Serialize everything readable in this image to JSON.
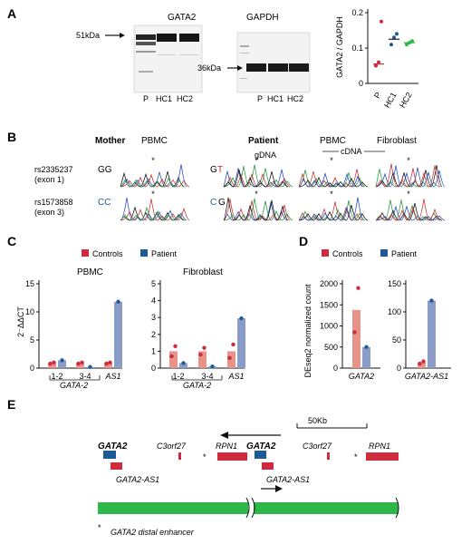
{
  "colors": {
    "red": "#cf2a3d",
    "blue": "#1d5b96",
    "control_bar": "#e8938a",
    "patient_bar": "#8a9cc7",
    "green": "#2fb84a",
    "mean_black": "#1a1a1a",
    "mean_blue": "#1d5b96",
    "mean_green": "#2fb84a"
  },
  "panels": {
    "a": {
      "letter": "A",
      "gel1_title": "GATA2",
      "gel2_title": "GAPDH",
      "marker1": "51kDa",
      "marker2": "36kDa",
      "lanes": [
        "P",
        "HC1",
        "HC2"
      ]
    },
    "b": {
      "letter": "B",
      "mother": "Mother",
      "mother_pbmc": "PBMC",
      "patient": "Patient",
      "gdna": "gDNA",
      "pbmc": "PBMC",
      "fibroblast": "Fibroblast",
      "cdna": "cDNA",
      "snp1": "rs2335237",
      "snp1_exon": "(exon 1)",
      "snp2": "rs1573858",
      "snp2_exon": "(exon 3)",
      "geno_m1": "GG",
      "geno_m2": "CC",
      "geno_p1a": "G",
      "geno_p1b": "T",
      "geno_p2a": "C",
      "geno_p2b": "G",
      "star": "*"
    },
    "c": {
      "letter": "C",
      "legend_controls": "Controls",
      "legend_patient": "Patient",
      "ylabel": "2⁻ΔΔCT",
      "gene_label": "GATA-2"
    },
    "d": {
      "letter": "D",
      "legend_controls": "Controls",
      "legend_patient": "Patient",
      "ylabel": "DEseq2 normalized count"
    },
    "e": {
      "letter": "E",
      "scale": "50Kb",
      "gata2": "GATA2",
      "c3orf27": "C3orf27",
      "rpn1": "RPN1",
      "gata2_as1": "GATA2-AS1",
      "star": "*",
      "enhancer": "GATA2 distal enhancer"
    }
  },
  "chart_data": [
    {
      "panel": "A-right",
      "type": "scatter",
      "ylabel": "GATA2 / GAPDH",
      "categories": [
        "P",
        "HC1",
        "HC2"
      ],
      "ylim": [
        0,
        0.2
      ],
      "yticks": [
        "0",
        "0.1",
        "0.2"
      ],
      "points": [
        [
          0.05,
          0.06,
          0.175
        ],
        [
          0.11,
          0.13,
          0.14
        ],
        [
          0.11,
          0.115,
          0.12
        ]
      ],
      "means": [
        0.055,
        0.125,
        0.115
      ]
    },
    {
      "panel": "C-PBMC",
      "type": "bar",
      "title": "PBMC",
      "ylabel": "2⁻ΔΔCT",
      "ylim": [
        0,
        15
      ],
      "yticks": [
        "0",
        "5",
        "10",
        "15"
      ],
      "categories": [
        "1-2",
        "3-4",
        "AS1"
      ],
      "series": [
        {
          "name": "Controls",
          "values": [
            0.9,
            0.9,
            0.9
          ],
          "points": [
            [
              0.8,
              1.0
            ],
            [
              0.8,
              1.0
            ],
            [
              0.8,
              1.0
            ]
          ]
        },
        {
          "name": "Patient",
          "values": [
            1.4,
            0.2,
            11.8
          ],
          "points": [
            1.4,
            0.2,
            11.8
          ]
        }
      ]
    },
    {
      "panel": "C-Fibroblast",
      "type": "bar",
      "title": "Fibroblast",
      "ylim": [
        0,
        5
      ],
      "yticks": [
        "0",
        "1",
        "2",
        "3",
        "4",
        "5"
      ],
      "categories": [
        "1-2",
        "3-4",
        "AS1"
      ],
      "series": [
        {
          "name": "Controls",
          "values": [
            1.0,
            1.0,
            1.0
          ],
          "points": [
            [
              0.7,
              1.3
            ],
            [
              0.8,
              1.2
            ],
            [
              0.6,
              1.4
            ]
          ]
        },
        {
          "name": "Patient",
          "values": [
            0.3,
            0.1,
            2.95
          ],
          "points": [
            0.3,
            0.1,
            2.95
          ]
        }
      ]
    },
    {
      "panel": "D-GATA2",
      "type": "bar",
      "ylim": [
        0,
        2000
      ],
      "yticks": [
        "0",
        "500",
        "1000",
        "1500",
        "2000"
      ],
      "categories": [
        "GATA2"
      ],
      "series": [
        {
          "name": "Controls",
          "values": [
            1380
          ],
          "points": [
            [
              850,
              1900
            ]
          ]
        },
        {
          "name": "Patient",
          "values": [
            500
          ],
          "points": [
            500
          ]
        }
      ]
    },
    {
      "panel": "D-GATA2-AS1",
      "type": "bar",
      "ylim": [
        0,
        150
      ],
      "yticks": [
        "0",
        "50",
        "100",
        "150"
      ],
      "categories": [
        "GATA2-AS1"
      ],
      "series": [
        {
          "name": "Controls",
          "values": [
            10
          ],
          "points": [
            [
              8,
              12
            ]
          ]
        },
        {
          "name": "Patient",
          "values": [
            120
          ],
          "points": [
            120
          ]
        }
      ]
    }
  ]
}
